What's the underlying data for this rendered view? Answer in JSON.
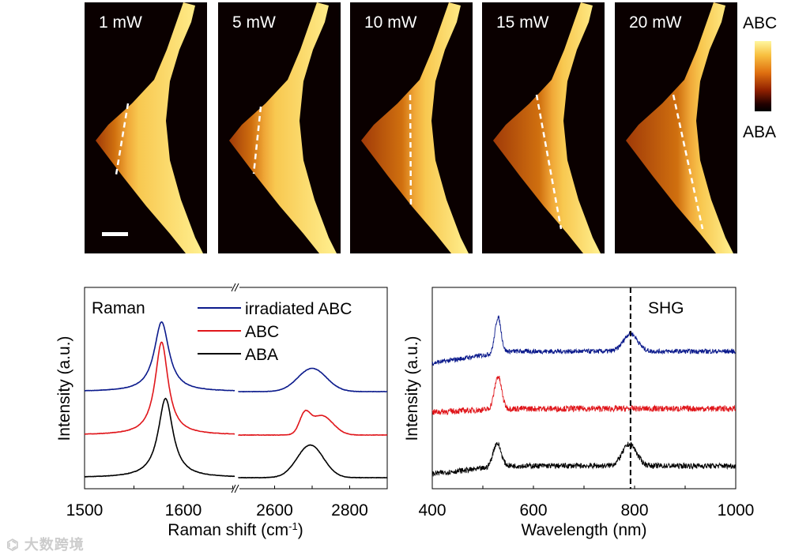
{
  "images": {
    "panels": [
      {
        "label": "1 mW",
        "boundary_fraction": 0.3
      },
      {
        "label": "5 mW",
        "boundary_fraction": 0.33
      },
      {
        "label": "10 mW",
        "boundary_fraction": 0.5
      },
      {
        "label": "15 mW",
        "boundary_fraction": 0.55
      },
      {
        "label": "20 mW",
        "boundary_fraction": 0.6
      }
    ],
    "colorbar": {
      "top_label": "ABC",
      "bottom_label": "ABA"
    }
  },
  "chart_data": [
    {
      "type": "line",
      "title": "Raman",
      "xlabel": "Raman shift (cm-1)",
      "xlabel_main": "Raman shift (cm",
      "xlabel_sup": "-1",
      "xlabel_end": ")",
      "ylabel": "Intensity (a.u.)",
      "x_segments": [
        [
          1500,
          1655
        ],
        [
          2500,
          2900
        ]
      ],
      "xticks": [
        "1500",
        "1600",
        "2600",
        "2800"
      ],
      "legend_position": "top-right",
      "series": [
        {
          "name": "ABA",
          "color": "#000000",
          "offset": 0,
          "G": {
            "center": 1582,
            "width": 9,
            "amp": 0.85
          },
          "2D": [
            {
              "center": 2695,
              "width": 35,
              "amp": 0.35
            }
          ],
          "noise": 0.004
        },
        {
          "name": "ABC",
          "color": "#e0161b",
          "offset": 0.55,
          "G": {
            "center": 1578,
            "width": 8,
            "amp": 1.05
          },
          "2D": [
            {
              "center": 2680,
              "width": 14,
              "amp": 0.2
            },
            {
              "center": 2725,
              "width": 30,
              "amp": 0.22
            }
          ],
          "noise": 0.004
        },
        {
          "name": "irradiated ABC",
          "color": "#0b1a8c",
          "offset": 1.1,
          "G": {
            "center": 1578,
            "width": 9,
            "amp": 0.9
          },
          "2D": [
            {
              "center": 2700,
              "width": 38,
              "amp": 0.3
            }
          ],
          "noise": 0.004
        }
      ]
    },
    {
      "type": "line",
      "title": "SHG",
      "xlabel": "Wavelength (nm)",
      "ylabel": "Intensity (a.u.)",
      "xlim": [
        400,
        1000
      ],
      "xticks": [
        "400",
        "600",
        "800",
        "1000"
      ],
      "marker_line_x": 792,
      "series": [
        {
          "name": "irradiated ABC",
          "color": "#0b1a8c",
          "offset": 1.6,
          "baseline": [
            0.0,
            0.3
          ],
          "peaks": [
            {
              "center": 530,
              "width": 6,
              "amp": 0.9
            },
            {
              "center": 792,
              "width": 14,
              "amp": 0.45
            }
          ],
          "noise": 0.06
        },
        {
          "name": "ABC",
          "color": "#e0161b",
          "offset": 0.85,
          "baseline": [
            0.0,
            0.08
          ],
          "peaks": [
            {
              "center": 530,
              "width": 7,
              "amp": 0.75
            }
          ],
          "noise": 0.07
        },
        {
          "name": "ABA",
          "color": "#000000",
          "offset": 0.0,
          "baseline": [
            0.0,
            0.2
          ],
          "peaks": [
            {
              "center": 528,
              "width": 8,
              "amp": 0.6
            },
            {
              "center": 790,
              "width": 14,
              "amp": 0.55
            }
          ],
          "noise": 0.07
        }
      ]
    }
  ],
  "watermark": "大数跨境"
}
